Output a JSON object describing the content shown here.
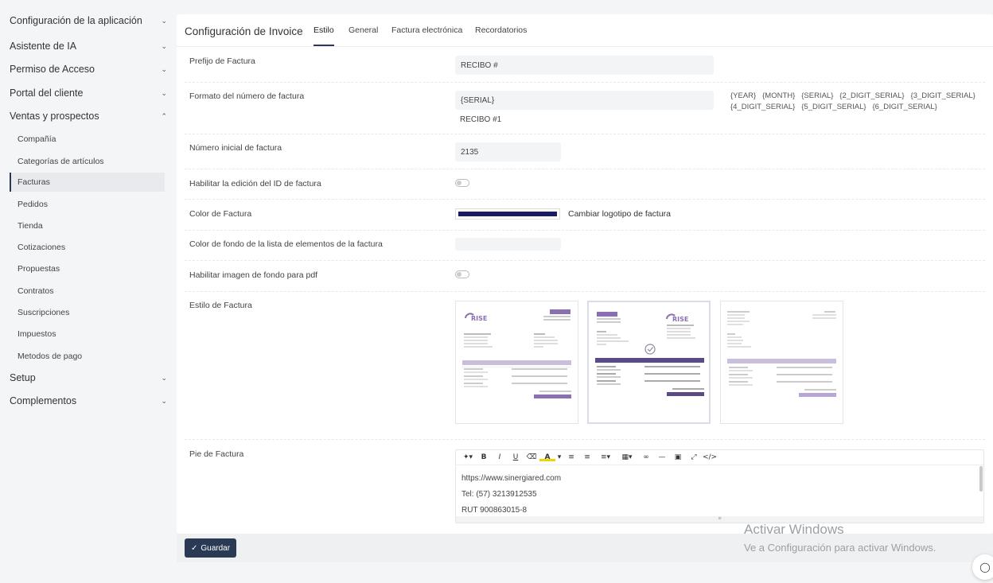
{
  "sidebar": {
    "items": [
      {
        "label": "Configuración de la aplicación",
        "chevron": "chevron-down"
      },
      {
        "label": "Asistente de IA",
        "chevron": "chevron-down"
      },
      {
        "label": "Permiso de Acceso",
        "chevron": "chevron-down"
      },
      {
        "label": "Portal del cliente",
        "chevron": "chevron-down"
      },
      {
        "label": "Ventas y prospectos",
        "chevron": "chevron-up"
      },
      {
        "label": "Setup",
        "chevron": "chevron-down"
      },
      {
        "label": "Complementos",
        "chevron": "chevron-down"
      }
    ],
    "sub_items": [
      "Compañía",
      "Categorías de artículos",
      "Facturas",
      "Pedidos",
      "Tienda",
      "Cotizaciones",
      "Propuestas",
      "Contratos",
      "Suscripciones",
      "Impuestos",
      "Metodos de pago"
    ],
    "active_sub_item": "Facturas"
  },
  "main": {
    "title": "Configuración de Invoice",
    "tabs": [
      {
        "label": "Estilo",
        "active": true
      },
      {
        "label": "General",
        "active": false
      },
      {
        "label": "Factura electrónica",
        "active": false
      },
      {
        "label": "Recordatorios",
        "active": false
      }
    ]
  },
  "form": {
    "prefix_label": "Prefijo de Factura",
    "prefix_value": "RECIBO #",
    "format_label": "Formato del número de factura",
    "format_value": "{SERIAL}",
    "format_preview": "RECIBO #1",
    "format_tokens_line1": "{YEAR}   {MONTH}   {SERIAL}   {2_DIGIT_SERIAL}   {3_DIGIT_SERIAL}",
    "format_tokens_line2": "{4_DIGIT_SERIAL}   {5_DIGIT_SERIAL}   {6_DIGIT_SERIAL}",
    "start_number_label": "Número inicial de factura",
    "start_number_value": "2135",
    "edit_id_label": "Habilitar la edición del ID de factura",
    "edit_id_enabled": false,
    "color_label": "Color de Factura",
    "color_value": "#1a1a5e",
    "change_logo_label": "Cambiar logotipo de factura",
    "items_bg_label": "Color de fondo de la lista de elementos de la factura",
    "items_bg_value": "",
    "pdf_bg_label": "Habilitar imagen de fondo para pdf",
    "pdf_bg_enabled": false,
    "style_label": "Estilo de Factura",
    "style_selected_index": 1,
    "footer_label": "Pie de Factura",
    "footer_lines": [
      "https://www.sinergiared.com",
      "Tel: (57) 3213912535",
      "RUT 900863015-8"
    ]
  },
  "thumbnails": {
    "logo_text": "RISE",
    "badge_text": "INVOICE #1",
    "accent": "#8a6fb3"
  },
  "actions": {
    "save_label": "Guardar"
  },
  "watermark": {
    "line1": "Activar Windows",
    "line2": "Ve a Configuración para activar Windows."
  },
  "colors": {
    "sidebar_active": "#2a3a55",
    "button_bg": "#2a3a55",
    "invoice_color": "#1a1a5e"
  }
}
